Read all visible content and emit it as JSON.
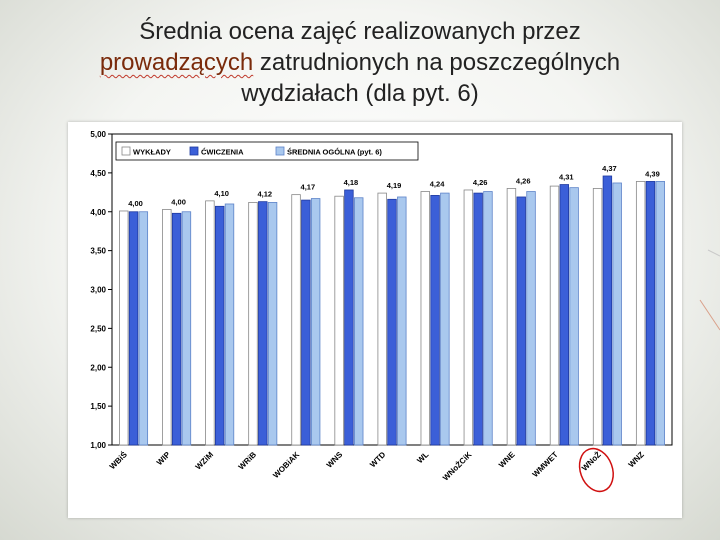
{
  "title": {
    "before": "Średnia ocena zajęć realizowanych przez",
    "highlight": "prowadzących",
    "after": "zatrudnionych na poszczególnych",
    "line3": "wydziałach (dla pyt. 6)"
  },
  "colors": {
    "wyklady": "#ffffff",
    "cwiczenia": "#3b5fd8",
    "srednia": "#a9c8ee",
    "frame": "#000000",
    "circle": "#d01010"
  },
  "chart_data": {
    "type": "bar",
    "categories": [
      "WBiŚ",
      "WIP",
      "WZiM",
      "WRiB",
      "WOBiAK",
      "WNS",
      "WTD",
      "WL",
      "WNoŻCiK",
      "WNE",
      "WMWET",
      "WNoŻ",
      "WNZ"
    ],
    "series": [
      {
        "name": "WYKŁADY",
        "values": [
          4.01,
          4.03,
          4.14,
          4.12,
          4.22,
          4.2,
          4.24,
          4.26,
          4.28,
          4.3,
          4.33,
          4.3,
          4.39
        ]
      },
      {
        "name": "ĆWICZENIA",
        "values": [
          4.0,
          3.98,
          4.07,
          4.13,
          4.15,
          4.28,
          4.16,
          4.21,
          4.24,
          4.19,
          4.35,
          4.46,
          4.39
        ]
      },
      {
        "name": "ŚREDNIA OGÓLNA (pyt. 6)",
        "values": [
          4.0,
          4.0,
          4.1,
          4.12,
          4.17,
          4.18,
          4.19,
          4.24,
          4.26,
          4.26,
          4.31,
          4.37,
          4.39
        ]
      }
    ],
    "data_labels": [
      "4,00",
      "4,00",
      "4,10",
      "4,12",
      "4,17",
      "4,18",
      "4,19",
      "4,24",
      "4,26",
      "4,26",
      "4,31",
      "4,37",
      "4,39"
    ],
    "y_ticks": [
      1.0,
      1.5,
      2.0,
      2.5,
      3.0,
      3.5,
      4.0,
      4.5,
      5.0
    ],
    "y_tick_labels": [
      "1,00",
      "1,50",
      "2,00",
      "2,50",
      "3,00",
      "3,50",
      "4,00",
      "4,50",
      "5,00"
    ],
    "ylim": [
      1.0,
      5.0
    ],
    "grid": false,
    "legend_position": "top-left",
    "highlighted_category": "WNoŻ"
  }
}
